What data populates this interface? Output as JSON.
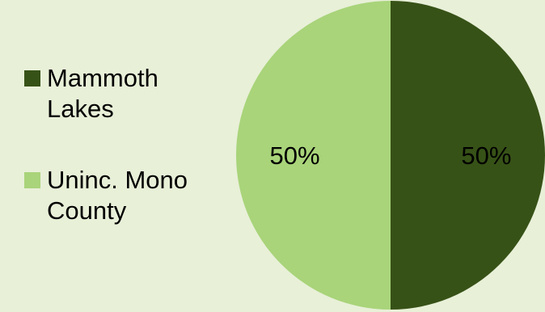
{
  "chart_data": {
    "type": "pie",
    "categories": [
      "Mammoth Lakes",
      "Uninc. Mono County"
    ],
    "values": [
      50,
      50
    ],
    "data_labels": [
      "50%",
      "50%"
    ],
    "colors": [
      "#375217",
      "#a9d47a"
    ],
    "legend": {
      "placement": "left",
      "entries": [
        {
          "line1": "Mammoth",
          "line2": "Lakes"
        },
        {
          "line1": "Uninc. Mono",
          "line2": "County"
        }
      ]
    }
  }
}
